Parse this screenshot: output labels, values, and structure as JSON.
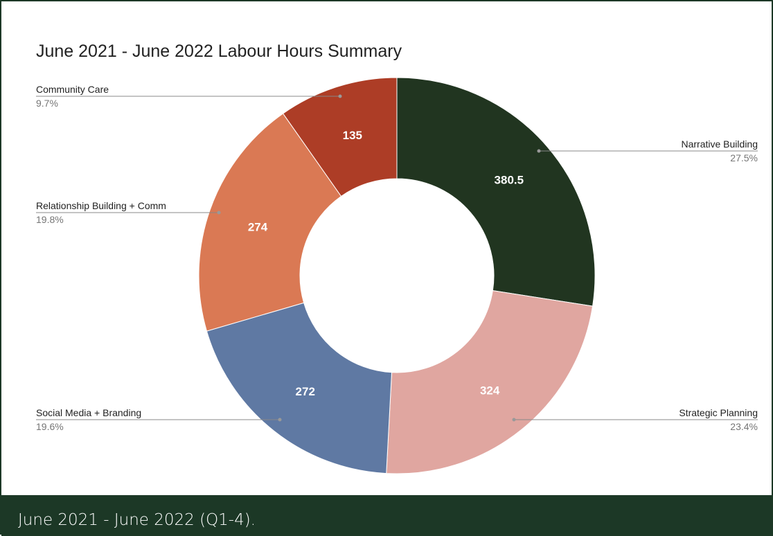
{
  "caption": "June 2021 - June 2022 (Q1-4).",
  "chart_data": {
    "type": "pie",
    "donut": true,
    "title": "June 2021 - June 2022 Labour Hours Summary",
    "slices": [
      {
        "label": "Narrative Building",
        "value": 380.5,
        "value_label": "380.5",
        "percent_label": "27.5%",
        "color": "#213520"
      },
      {
        "label": "Strategic Planning",
        "value": 324,
        "value_label": "324",
        "percent_label": "23.4%",
        "color": "#e0a6a0"
      },
      {
        "label": "Social Media + Branding",
        "value": 272,
        "value_label": "272",
        "percent_label": "19.6%",
        "color": "#5f79a3"
      },
      {
        "label": "Relationship Building + Comm",
        "value": 274,
        "value_label": "274",
        "percent_label": "19.8%",
        "color": "#da7954"
      },
      {
        "label": "Community Care",
        "value": 135,
        "value_label": "135",
        "percent_label": "9.7%",
        "color": "#ad3d26"
      }
    ],
    "legend": "callout labels around the donut"
  }
}
